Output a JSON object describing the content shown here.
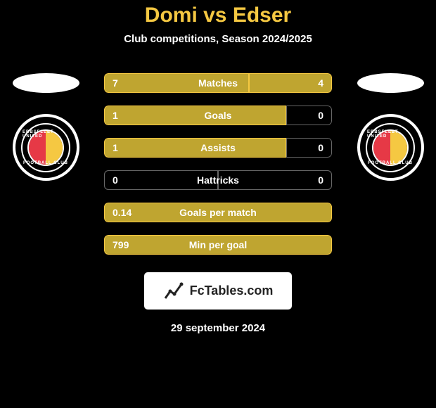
{
  "title": "Domi vs Edser",
  "subtitle": "Club competitions, Season 2024/2025",
  "date": "29 september 2024",
  "logo_text": "FcTables.com",
  "colors": {
    "background": "#000000",
    "accent": "#f5c842",
    "bar_fill": "#bfa530",
    "bar_border": "#f5c842",
    "neutral_border": "#666666",
    "text": "#ffffff",
    "badge_red": "#e63946"
  },
  "club": {
    "name_top": "EBBSFLEET UNITED",
    "name_bottom": "FOOTBALL CLUB"
  },
  "stats": [
    {
      "label": "Matches",
      "left_val": "7",
      "right_val": "4",
      "left_pct": 63.6,
      "right_pct": 36.4,
      "left_active": true,
      "right_active": true
    },
    {
      "label": "Goals",
      "left_val": "1",
      "right_val": "0",
      "left_pct": 80,
      "right_pct": 20,
      "left_active": true,
      "right_active": false
    },
    {
      "label": "Assists",
      "left_val": "1",
      "right_val": "0",
      "left_pct": 80,
      "right_pct": 20,
      "left_active": true,
      "right_active": false
    },
    {
      "label": "Hattricks",
      "left_val": "0",
      "right_val": "0",
      "left_pct": 50,
      "right_pct": 50,
      "left_active": false,
      "right_active": false
    },
    {
      "label": "Goals per match",
      "left_val": "0.14",
      "right_val": "",
      "left_pct": 100,
      "right_pct": 0,
      "left_active": true,
      "right_active": false
    },
    {
      "label": "Min per goal",
      "left_val": "799",
      "right_val": "",
      "left_pct": 100,
      "right_pct": 0,
      "left_active": true,
      "right_active": false
    }
  ]
}
